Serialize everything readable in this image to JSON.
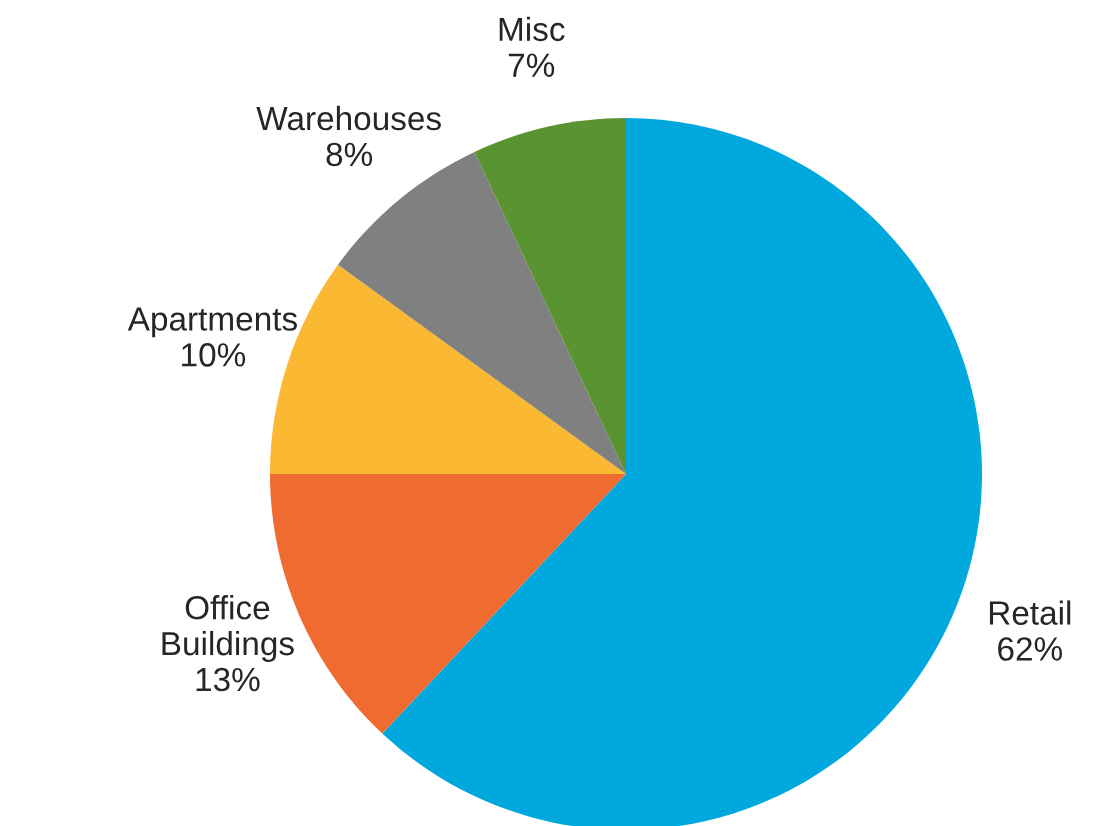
{
  "chart_data": {
    "type": "pie",
    "categories": [
      "Retail",
      "Office Buildings",
      "Apartments",
      "Warehouses",
      "Misc"
    ],
    "values": [
      62,
      13,
      10,
      8,
      7
    ],
    "colors": [
      "#00a8de",
      "#f06b30",
      "#fbb832",
      "#808080",
      "#5a9332"
    ],
    "value_labels": [
      "62%",
      "13%",
      "10%",
      "8%",
      "7%"
    ],
    "legend": false
  }
}
